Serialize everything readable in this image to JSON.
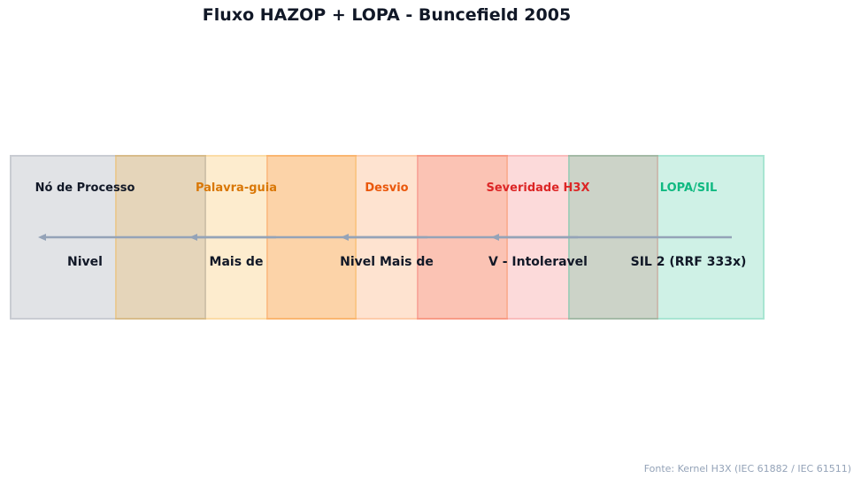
{
  "title": "Fluxo HAZOP + LOPA - Buncefield 2005",
  "stages": [
    {
      "label": "Nó de Processo",
      "value": "Nivel",
      "color": "#111827",
      "fill": "#6b7280"
    },
    {
      "label": "Palavra-guia",
      "value": "Mais de",
      "color": "#d97706",
      "fill": "#f59e0b"
    },
    {
      "label": "Desvio",
      "value": "Nivel Mais de",
      "color": "#ea580c",
      "fill": "#f97316"
    },
    {
      "label": "Severidade H3X",
      "value": "V - Intoleravel",
      "color": "#dc2626",
      "fill": "#ef4444"
    },
    {
      "label": "LOPA/SIL",
      "value": "SIL 2 (RRF 333x)",
      "color": "#10b981",
      "fill": "#10b981"
    }
  ],
  "arrow_color": "#94a3b8",
  "source": "Fonte: Kernel H3X (IEC 61882 / IEC 61511)"
}
